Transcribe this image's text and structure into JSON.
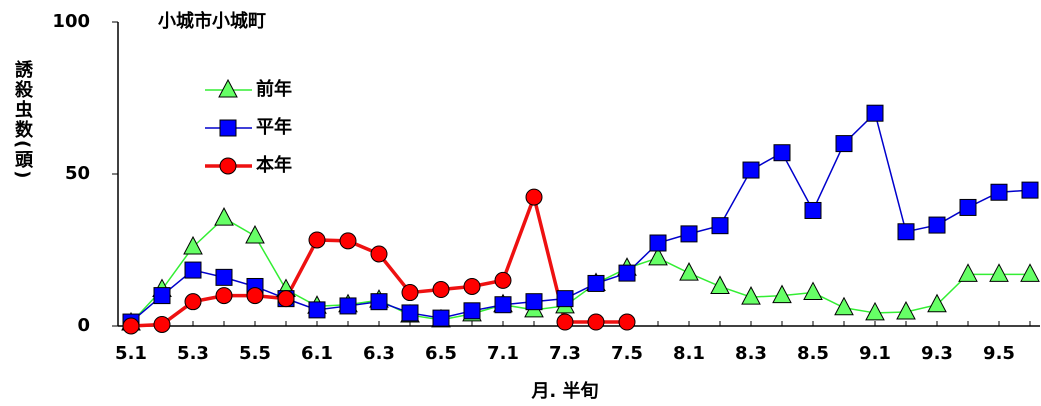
{
  "chart_data": {
    "type": "line",
    "title": "小城市小城町",
    "y_label": "誘殺虫数(頭)",
    "x_label": "月. 半旬",
    "categories": [
      "5.1",
      null,
      "5.3",
      null,
      "5.5",
      null,
      "6.1",
      null,
      "6.3",
      null,
      "6.5",
      null,
      "7.1",
      null,
      "7.3",
      null,
      "7.5",
      null,
      "8.1",
      null,
      "8.3",
      null,
      "8.5",
      null,
      "9.1",
      null,
      "9.3",
      null,
      "9.5",
      null
    ],
    "series": [
      {
        "name": "前年",
        "color": "#33ee33",
        "marker": "triangle",
        "marker_color": "#66ff66",
        "values": [
          1,
          12,
          26,
          35.5,
          29.6,
          12,
          6.5,
          7,
          8.5,
          3.6,
          2,
          4,
          7,
          5.3,
          6.6,
          14,
          19,
          22.4,
          17.4,
          13,
          9.5,
          10,
          11,
          6,
          4.3,
          4.6,
          7,
          17,
          17,
          17
        ]
      },
      {
        "name": "平年",
        "color": "#0000cc",
        "marker": "square",
        "marker_color": "#0000ff",
        "values": [
          1.3,
          10,
          18.4,
          16,
          13,
          9,
          5.3,
          6.6,
          8,
          4.3,
          2.6,
          5,
          7,
          8,
          9,
          14,
          17.4,
          27.3,
          30.3,
          33,
          51.3,
          57,
          38,
          60,
          70,
          31,
          33.2,
          39,
          44,
          44.7
        ]
      },
      {
        "name": "本年",
        "color": "#ee1111",
        "marker": "circle",
        "marker_color": "#ff0000",
        "values": [
          0,
          0.5,
          8,
          10,
          10,
          9,
          28.3,
          28,
          23.7,
          11,
          12,
          13,
          15,
          42.4,
          1.3,
          1.3,
          1.3,
          null,
          null,
          null,
          null,
          null,
          null,
          null,
          null,
          null,
          null,
          null,
          null,
          null
        ]
      }
    ],
    "ylim": [
      0,
      100
    ],
    "yticks": [
      0,
      50,
      100
    ],
    "grid": false,
    "legend": "upper left"
  }
}
